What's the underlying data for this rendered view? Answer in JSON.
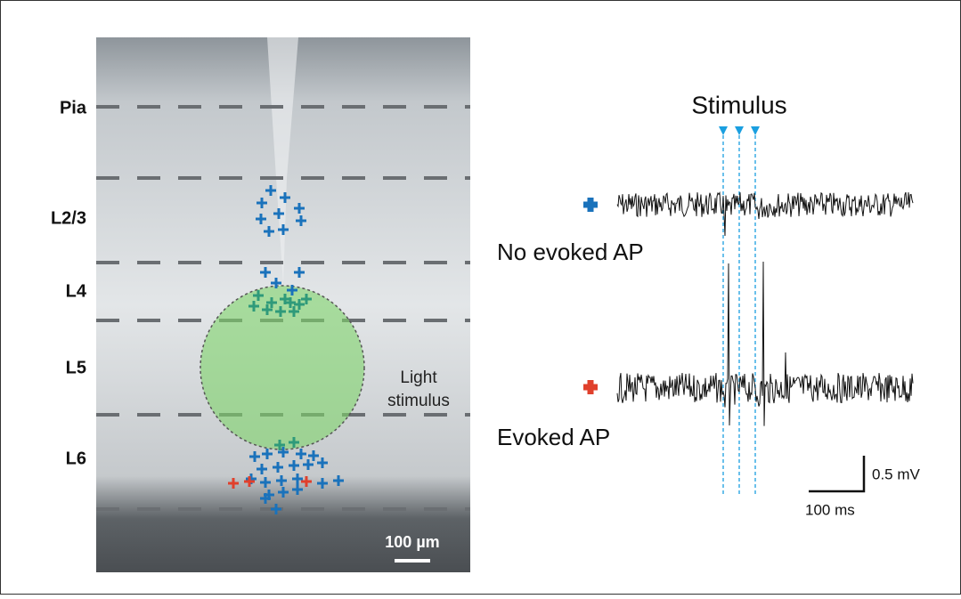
{
  "layers": [
    "Pia",
    "L2/3",
    "L4",
    "L5",
    "L6"
  ],
  "light_label": [
    "Light",
    "stimulus"
  ],
  "image_scale": "100 µm",
  "stimulus_label": "Stimulus",
  "traces": [
    {
      "label": "No evoked AP"
    },
    {
      "label": "Evoked AP"
    }
  ],
  "scale_bar": {
    "voltage": "0.5 mV",
    "time": "100 ms"
  }
}
